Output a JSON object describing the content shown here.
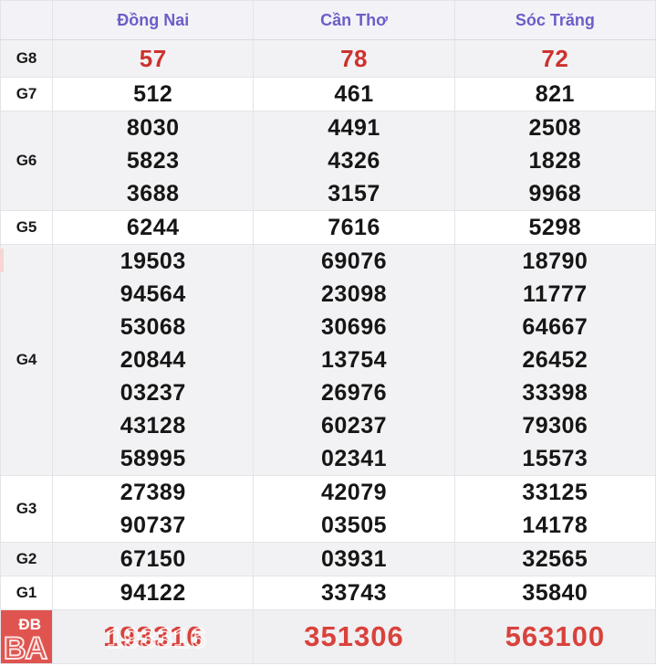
{
  "header": {
    "columns": [
      "Đồng Nai",
      "Cần Thơ",
      "Sóc Trăng"
    ]
  },
  "rows": [
    {
      "label": "G8",
      "style": "g8",
      "values": [
        [
          "57"
        ],
        [
          "78"
        ],
        [
          "72"
        ]
      ]
    },
    {
      "label": "G7",
      "style": "normal",
      "values": [
        [
          "512"
        ],
        [
          "461"
        ],
        [
          "821"
        ]
      ]
    },
    {
      "label": "G6",
      "style": "normal",
      "values": [
        [
          "8030",
          "5823",
          "3688"
        ],
        [
          "4491",
          "4326",
          "3157"
        ],
        [
          "2508",
          "1828",
          "9968"
        ]
      ]
    },
    {
      "label": "G5",
      "style": "normal",
      "values": [
        [
          "6244"
        ],
        [
          "7616"
        ],
        [
          "5298"
        ]
      ]
    },
    {
      "label": "G4",
      "style": "normal",
      "values": [
        [
          "19503",
          "94564",
          "53068",
          "20844",
          "03237",
          "43128",
          "58995"
        ],
        [
          "69076",
          "23098",
          "30696",
          "13754",
          "26976",
          "60237",
          "02341"
        ],
        [
          "18790",
          "11777",
          "64667",
          "26452",
          "33398",
          "79306",
          "15573"
        ]
      ]
    },
    {
      "label": "G3",
      "style": "normal",
      "values": [
        [
          "27389",
          "90737"
        ],
        [
          "42079",
          "03505"
        ],
        [
          "33125",
          "14178"
        ]
      ]
    },
    {
      "label": "G2",
      "style": "normal",
      "values": [
        [
          "67150"
        ],
        [
          "03931"
        ],
        [
          "32565"
        ]
      ]
    },
    {
      "label": "G1",
      "style": "normal",
      "values": [
        [
          "94122"
        ],
        [
          "33743"
        ],
        [
          "35840"
        ]
      ]
    },
    {
      "label": "ĐB",
      "style": "db",
      "values": [
        [
          "193316"
        ],
        [
          "351306"
        ],
        [
          "563100"
        ]
      ]
    }
  ],
  "watermark": {
    "logo_text": "BA"
  },
  "colors": {
    "header_text": "#6b5ec7",
    "g8_red": "#cd322d",
    "db_red": "#d9423c",
    "db_label_bg": "#e0544f",
    "zebra_gray": "#f2f2f4",
    "border": "#e4e4e8"
  }
}
